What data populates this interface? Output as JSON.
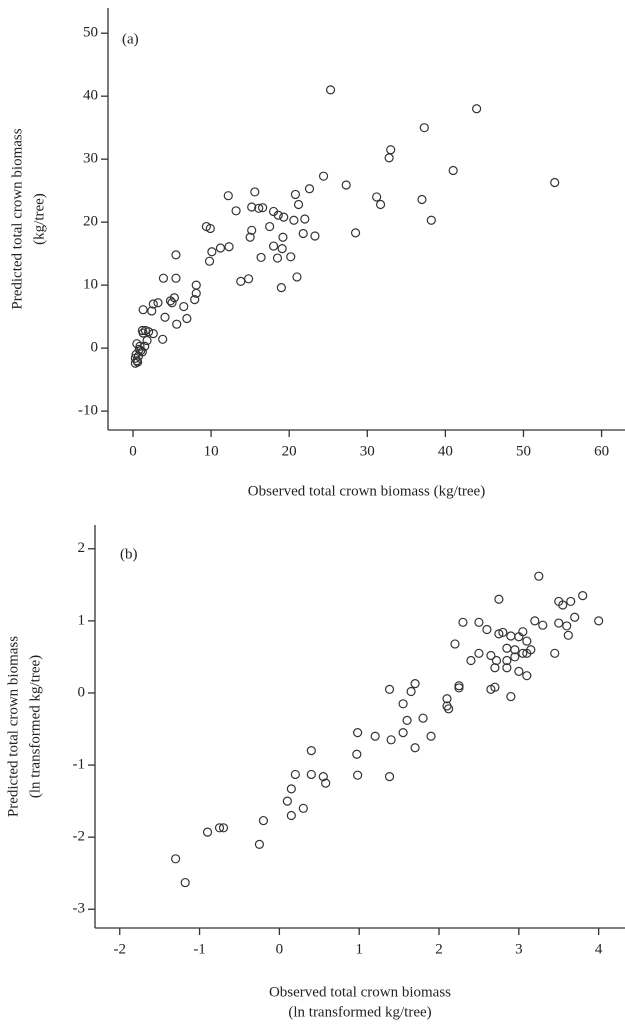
{
  "chart_data": [
    {
      "type": "scatter",
      "annotation": "(a)",
      "xlabel": [
        "Observed total crown biomass (kg/tree)"
      ],
      "ylabel": [
        "Predicted total crown biomass",
        "(kg/tree)"
      ],
      "xlim": [
        -3.2,
        63
      ],
      "ylim": [
        -13,
        54
      ],
      "xticks": [
        0,
        10,
        20,
        30,
        40,
        50,
        60
      ],
      "yticks": [
        -10,
        0,
        10,
        20,
        30,
        40,
        50
      ],
      "color": "#333333",
      "x": [
        25.3,
        44,
        37.3,
        33,
        32.8,
        41,
        54,
        24.4,
        27.3,
        31.2,
        31.7,
        37,
        38.2,
        22.6,
        20.8,
        21.2,
        20.6,
        22,
        21.8,
        23.3,
        28.5,
        15.6,
        12.2,
        15.2,
        16.1,
        16.6,
        13.2,
        18,
        18.6,
        19.3,
        17.5,
        15.2,
        15,
        19.2,
        18,
        19.1,
        16.4,
        18.5,
        20.2,
        9.4,
        9.9,
        10.1,
        11.2,
        12.3,
        9.8,
        8.1,
        8.1,
        7.9,
        13.8,
        14.8,
        21,
        19,
        5.5,
        3.9,
        5.5,
        6.5,
        5.3,
        4.8,
        5,
        6.9,
        5.6,
        4.1,
        3.2,
        2.6,
        2.4,
        1.3,
        3.8,
        2.6,
        1.6,
        1.2,
        1.3,
        2,
        1.8,
        1.5,
        0.9,
        0.5,
        0.8,
        1,
        0.4,
        0.7,
        0.3,
        0.5,
        0.3,
        0.6,
        1.2
      ],
      "y": [
        41,
        38,
        35,
        31.5,
        30.2,
        28.2,
        26.3,
        27.3,
        25.9,
        24,
        22.8,
        23.6,
        20.3,
        25.3,
        24.4,
        22.8,
        20.3,
        20.5,
        18.2,
        17.8,
        18.3,
        24.8,
        24.2,
        22.4,
        22.2,
        22.3,
        21.8,
        21.7,
        21.1,
        20.8,
        19.3,
        18.7,
        17.6,
        17.6,
        16.2,
        15.8,
        14.4,
        14.3,
        14.5,
        19.3,
        19,
        15.3,
        15.9,
        16.1,
        13.8,
        10,
        8.7,
        7.7,
        10.6,
        11,
        11.3,
        9.6,
        14.8,
        11.1,
        11.1,
        6.6,
        8,
        7.5,
        7.2,
        4.7,
        3.8,
        4.9,
        7.2,
        7,
        5.9,
        6.1,
        1.4,
        2.3,
        2.8,
        2.8,
        2.4,
        2.6,
        1.2,
        0.3,
        0.3,
        0.7,
        -0.2,
        -0.4,
        -1,
        -1.3,
        -1.6,
        -2,
        -2.4,
        -2.2,
        -0.6
      ]
    },
    {
      "type": "scatter",
      "annotation": "(b)",
      "xlabel": [
        "Observed total crown biomass",
        "(ln transformed kg/tree)"
      ],
      "ylabel": [
        "Predicted total crown biomass",
        "(ln transformed kg/tree)"
      ],
      "xlim": [
        -2.31,
        4.33
      ],
      "ylim": [
        -3.26,
        2.33
      ],
      "xticks": [
        -2,
        -1,
        0,
        1,
        2,
        3,
        4
      ],
      "yticks": [
        -3,
        -2,
        -1,
        0,
        1,
        2
      ],
      "color": "#333333",
      "x": [
        3.25,
        2.75,
        3.8,
        3.65,
        3.5,
        3.55,
        3.7,
        4,
        3.6,
        3.5,
        3.2,
        3.3,
        2.5,
        2.3,
        2.6,
        2.75,
        2.8,
        3.05,
        2.2,
        3.0,
        3.1,
        2.9,
        3.62,
        3.45,
        3.15,
        3.1,
        3.05,
        2.95,
        2.85,
        2.5,
        2.4,
        2.65,
        3.0,
        3.1,
        2.95,
        2.85,
        2.7,
        2.85,
        2.72,
        2.65,
        2.7,
        2.9,
        2.25,
        2.25,
        2.1,
        2.1,
        2.12,
        1.38,
        1.7,
        1.65,
        1.55,
        1.6,
        1.8,
        1.55,
        1.9,
        1.4,
        1.7,
        1.2,
        0.98,
        0.97,
        0.98,
        1.38,
        0.4,
        0.4,
        0.2,
        0.55,
        0.58,
        0.15,
        0.1,
        0.3,
        0.15,
        -0.2,
        -0.25,
        -0.7,
        -0.75,
        -0.9,
        -1.3,
        -1.18
      ],
      "y": [
        1.62,
        1.3,
        1.35,
        1.27,
        1.27,
        1.22,
        1.05,
        1.0,
        0.93,
        0.97,
        1.0,
        0.94,
        0.98,
        0.98,
        0.88,
        0.82,
        0.84,
        0.85,
        0.68,
        0.78,
        0.72,
        0.79,
        0.8,
        0.55,
        0.6,
        0.55,
        0.55,
        0.5,
        0.45,
        0.55,
        0.45,
        0.52,
        0.3,
        0.24,
        0.6,
        0.62,
        0.35,
        0.35,
        0.45,
        0.05,
        0.08,
        -0.05,
        0.1,
        0.07,
        -0.08,
        -0.18,
        -0.22,
        0.05,
        0.13,
        0.02,
        -0.15,
        -0.38,
        -0.35,
        -0.55,
        -0.6,
        -0.65,
        -0.76,
        -0.6,
        -0.55,
        -0.85,
        -1.14,
        -1.16,
        -0.8,
        -1.13,
        -1.13,
        -1.16,
        -1.25,
        -1.33,
        -1.5,
        -1.6,
        -1.7,
        -1.77,
        -2.1,
        -1.87,
        -1.87,
        -1.93,
        -2.3,
        -2.63
      ]
    }
  ]
}
